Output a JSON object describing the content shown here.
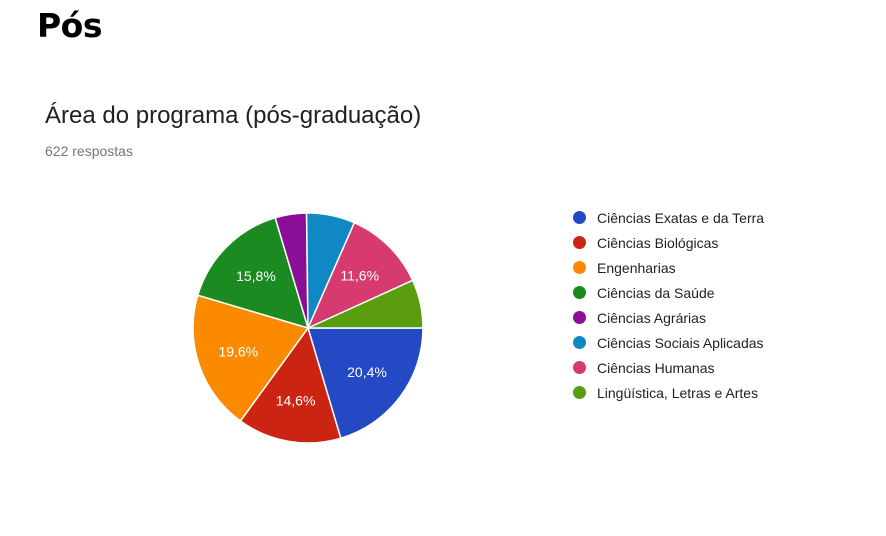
{
  "page": {
    "heading": "Pós"
  },
  "chart_data": {
    "type": "pie",
    "title": "Área do programa (pós-graduação)",
    "subtitle": "622 respostas",
    "legend_position": "right",
    "slices": [
      {
        "name": "Ciências Exatas e da Terra",
        "value": 20.4,
        "label": "20,4%",
        "color": "#2449c4"
      },
      {
        "name": "Ciências Biológicas",
        "value": 14.6,
        "label": "14,6%",
        "color": "#cc2412"
      },
      {
        "name": "Engenharias",
        "value": 19.6,
        "label": "19,6%",
        "color": "#fb8a00"
      },
      {
        "name": "Ciências da Saúde",
        "value": 15.8,
        "label": "15,8%",
        "color": "#1a8a21"
      },
      {
        "name": "Ciências Agrárias",
        "value": 4.4,
        "label": "",
        "color": "#8a0f96"
      },
      {
        "name": "Ciências Sociais Aplicadas",
        "value": 6.8,
        "label": "",
        "color": "#0f88c3"
      },
      {
        "name": "Ciências Humanas",
        "value": 11.6,
        "label": "11,6%",
        "color": "#d63a6e"
      },
      {
        "name": "Lingüística, Letras e Artes",
        "value": 6.8,
        "label": "",
        "color": "#5a9e0f"
      }
    ]
  }
}
